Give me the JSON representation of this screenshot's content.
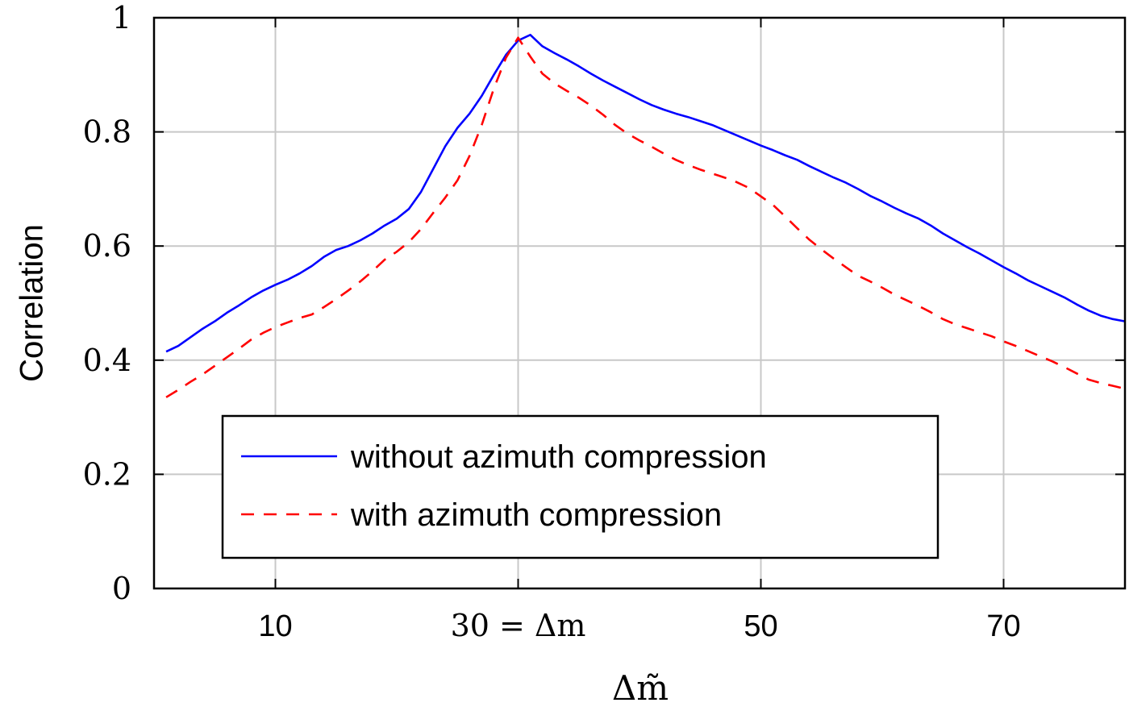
{
  "chart_data": {
    "type": "line",
    "xlabel": "Δm̃",
    "ylabel": "Correlation",
    "xlim": [
      0,
      80
    ],
    "ylim": [
      0,
      1
    ],
    "x_ticks": [
      {
        "value": 10,
        "label": "10",
        "style": "sans"
      },
      {
        "value": 30,
        "label": "30 = Δm",
        "style": "serif"
      },
      {
        "value": 50,
        "label": "50",
        "style": "sans"
      },
      {
        "value": 70,
        "label": "70",
        "style": "sans"
      }
    ],
    "y_ticks": [
      {
        "value": 0,
        "label": "0"
      },
      {
        "value": 0.2,
        "label": "0.2"
      },
      {
        "value": 0.4,
        "label": "0.4"
      },
      {
        "value": 0.6,
        "label": "0.6"
      },
      {
        "value": 0.8,
        "label": "0.8"
      },
      {
        "value": 1,
        "label": "1"
      }
    ],
    "grid": true,
    "legend_position": "bottom-center",
    "series": [
      {
        "name": "without azimuth compression",
        "color": "#0000ff",
        "dash": "solid",
        "x": [
          1,
          2,
          3,
          4,
          5,
          6,
          7,
          8,
          9,
          10,
          11,
          12,
          13,
          14,
          15,
          16,
          17,
          18,
          19,
          20,
          21,
          22,
          23,
          24,
          25,
          26,
          27,
          28,
          29,
          30,
          31,
          32,
          33,
          34,
          35,
          36,
          37,
          38,
          39,
          40,
          41,
          42,
          43,
          44,
          45,
          46,
          47,
          48,
          49,
          50,
          51,
          52,
          53,
          54,
          55,
          56,
          57,
          58,
          59,
          60,
          61,
          62,
          63,
          64,
          65,
          66,
          67,
          68,
          69,
          70,
          71,
          72,
          73,
          74,
          75,
          76,
          77,
          78,
          79,
          80
        ],
        "y": [
          0.415,
          0.425,
          0.44,
          0.455,
          0.468,
          0.483,
          0.496,
          0.51,
          0.522,
          0.532,
          0.541,
          0.552,
          0.565,
          0.581,
          0.593,
          0.6,
          0.61,
          0.622,
          0.636,
          0.648,
          0.665,
          0.695,
          0.735,
          0.775,
          0.807,
          0.832,
          0.863,
          0.9,
          0.935,
          0.96,
          0.97,
          0.95,
          0.938,
          0.927,
          0.915,
          0.902,
          0.89,
          0.879,
          0.868,
          0.857,
          0.847,
          0.839,
          0.832,
          0.826,
          0.819,
          0.812,
          0.803,
          0.794,
          0.785,
          0.776,
          0.768,
          0.759,
          0.751,
          0.74,
          0.73,
          0.72,
          0.711,
          0.7,
          0.688,
          0.678,
          0.667,
          0.657,
          0.648,
          0.636,
          0.622,
          0.61,
          0.598,
          0.587,
          0.575,
          0.563,
          0.552,
          0.54,
          0.53,
          0.52,
          0.51,
          0.498,
          0.487,
          0.478,
          0.472,
          0.468
        ]
      },
      {
        "name": "with azimuth compression",
        "color": "#ff0000",
        "dash": "dashed",
        "x": [
          1,
          2,
          3,
          4,
          5,
          6,
          7,
          8,
          9,
          10,
          11,
          12,
          13,
          14,
          15,
          16,
          17,
          18,
          19,
          20,
          21,
          22,
          23,
          24,
          25,
          26,
          27,
          28,
          29,
          30,
          31,
          32,
          33,
          34,
          35,
          36,
          37,
          38,
          39,
          40,
          41,
          42,
          43,
          44,
          45,
          46,
          47,
          48,
          49,
          50,
          51,
          52,
          53,
          54,
          55,
          56,
          57,
          58,
          59,
          60,
          61,
          62,
          63,
          64,
          65,
          66,
          67,
          68,
          69,
          70,
          71,
          72,
          73,
          74,
          75,
          76,
          77,
          78,
          79,
          80
        ],
        "y": [
          0.335,
          0.348,
          0.362,
          0.375,
          0.39,
          0.405,
          0.42,
          0.436,
          0.448,
          0.458,
          0.466,
          0.474,
          0.48,
          0.493,
          0.507,
          0.522,
          0.538,
          0.556,
          0.576,
          0.59,
          0.607,
          0.63,
          0.658,
          0.685,
          0.715,
          0.758,
          0.812,
          0.876,
          0.93,
          0.965,
          0.932,
          0.902,
          0.885,
          0.872,
          0.86,
          0.846,
          0.83,
          0.812,
          0.797,
          0.785,
          0.774,
          0.762,
          0.751,
          0.742,
          0.734,
          0.727,
          0.72,
          0.712,
          0.702,
          0.687,
          0.672,
          0.652,
          0.631,
          0.611,
          0.594,
          0.578,
          0.563,
          0.548,
          0.538,
          0.527,
          0.515,
          0.505,
          0.495,
          0.484,
          0.472,
          0.463,
          0.456,
          0.449,
          0.442,
          0.433,
          0.425,
          0.416,
          0.407,
          0.398,
          0.388,
          0.377,
          0.366,
          0.36,
          0.355,
          0.35
        ]
      }
    ]
  }
}
